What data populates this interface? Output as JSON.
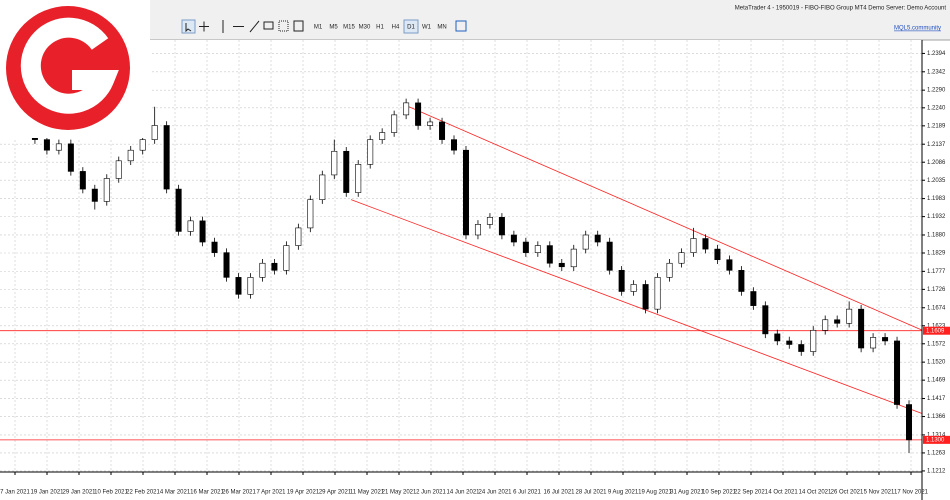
{
  "window_title": "MetaTrader 4 - 1950019 - FIBO-FIBO Group MT4 Demo Server: Demo Account",
  "timeframes": [
    "M1",
    "M5",
    "M15",
    "M30",
    "H1",
    "H4",
    "D1",
    "W1",
    "MN"
  ],
  "active_timeframe": 6,
  "link": "MQL5.community",
  "chart_data": {
    "type": "candlestick",
    "open": [
      1.225,
      1.2222,
      1.217,
      1.215,
      1.212,
      1.2138,
      1.206,
      1.201,
      1.1975,
      1.204,
      1.209,
      1.212,
      1.215,
      1.219,
      1.201,
      1.189,
      1.192,
      1.186,
      1.183,
      1.176,
      1.1712,
      1.176,
      1.18,
      1.178,
      1.185,
      1.19,
      1.198,
      1.205,
      1.2117,
      1.2,
      1.208,
      1.215,
      1.217,
      1.222,
      1.2254,
      1.219,
      1.22,
      1.215,
      1.212,
      1.188,
      1.191,
      1.193,
      1.188,
      1.186,
      1.183,
      1.185,
      1.18,
      1.179,
      1.184,
      1.188,
      1.186,
      1.178,
      1.172,
      1.174,
      1.167,
      1.176,
      1.18,
      1.183,
      1.187,
      1.184,
      1.181,
      1.178,
      1.172,
      1.168,
      1.16,
      1.158,
      1.157,
      1.155,
      1.161,
      1.164,
      1.163,
      1.167,
      1.156,
      1.159,
      1.158,
      1.14
    ],
    "high": [
      1.2262,
      1.2234,
      1.2182,
      1.2162,
      1.215,
      1.215,
      1.2072,
      1.2022,
      1.2052,
      1.2102,
      1.2132,
      1.2162,
      1.2243,
      1.2202,
      1.2022,
      1.1932,
      1.1932,
      1.1872,
      1.1842,
      1.1772,
      1.1772,
      1.1812,
      1.1812,
      1.1862,
      1.1912,
      1.1992,
      1.2062,
      1.215,
      1.2129,
      1.2092,
      1.2162,
      1.2182,
      1.2232,
      1.2266,
      1.2266,
      1.2212,
      1.2212,
      1.2162,
      1.2132,
      1.1922,
      1.1942,
      1.1942,
      1.1892,
      1.1872,
      1.1862,
      1.1862,
      1.1812,
      1.1852,
      1.1892,
      1.1892,
      1.1872,
      1.1792,
      1.1752,
      1.1752,
      1.1772,
      1.1812,
      1.1842,
      1.19,
      1.1882,
      1.1852,
      1.1822,
      1.1792,
      1.1732,
      1.1692,
      1.1612,
      1.1592,
      1.1582,
      1.1622,
      1.1652,
      1.1652,
      1.1692,
      1.1682,
      1.1602,
      1.1602,
      1.1592,
      1.1412
    ],
    "low": [
      1.221,
      1.2158,
      1.2138,
      1.2108,
      1.2108,
      1.2048,
      1.1998,
      1.1952,
      1.1963,
      1.2028,
      1.2078,
      1.2108,
      1.2138,
      1.1998,
      1.1878,
      1.1878,
      1.1848,
      1.1818,
      1.1748,
      1.17,
      1.17,
      1.1748,
      1.1768,
      1.1768,
      1.1838,
      1.1888,
      1.1968,
      1.2038,
      1.1988,
      1.1988,
      1.2068,
      1.2138,
      1.2158,
      1.2208,
      1.2178,
      1.2178,
      1.2138,
      1.2108,
      1.1868,
      1.1868,
      1.1898,
      1.1868,
      1.1848,
      1.1818,
      1.1818,
      1.1788,
      1.1778,
      1.1778,
      1.1828,
      1.1848,
      1.1768,
      1.1708,
      1.1708,
      1.1658,
      1.1658,
      1.1748,
      1.1788,
      1.1818,
      1.1828,
      1.1798,
      1.1768,
      1.1708,
      1.1668,
      1.1588,
      1.1568,
      1.1558,
      1.1538,
      1.1538,
      1.1598,
      1.1618,
      1.1618,
      1.1548,
      1.1548,
      1.1568,
      1.1388,
      1.1263
    ],
    "close": [
      1.2222,
      1.217,
      1.215,
      1.212,
      1.2138,
      1.206,
      1.201,
      1.1975,
      1.204,
      1.209,
      1.212,
      1.215,
      1.219,
      1.201,
      1.189,
      1.192,
      1.186,
      1.183,
      1.176,
      1.1712,
      1.176,
      1.18,
      1.178,
      1.185,
      1.19,
      1.198,
      1.205,
      1.2117,
      1.2,
      1.208,
      1.215,
      1.217,
      1.222,
      1.2254,
      1.219,
      1.22,
      1.215,
      1.212,
      1.188,
      1.191,
      1.193,
      1.188,
      1.186,
      1.183,
      1.185,
      1.18,
      1.179,
      1.184,
      1.188,
      1.186,
      1.178,
      1.172,
      1.174,
      1.167,
      1.176,
      1.18,
      1.183,
      1.187,
      1.184,
      1.181,
      1.178,
      1.172,
      1.168,
      1.16,
      1.158,
      1.157,
      1.155,
      1.161,
      1.164,
      1.163,
      1.167,
      1.156,
      1.159,
      1.158,
      1.14,
      1.13
    ],
    "xlabels": [
      "7 Jan 2021",
      "19 Jan 2021",
      "29 Jan 2021",
      "10 Feb 2021",
      "22 Feb 2021",
      "4 Mar 2021",
      "16 Mar 2021",
      "26 Mar 2021",
      "7 Apr 2021",
      "19 Apr 2021",
      "29 Apr 2021",
      "11 May 2021",
      "21 May 2021",
      "2 Jun 2021",
      "14 Jun 2021",
      "24 Jun 2021",
      "6 Jul 2021",
      "16 Jul 2021",
      "28 Jul 2021",
      "9 Aug 2021",
      "19 Aug 2021",
      "31 Aug 2021",
      "10 Sep 2021",
      "22 Sep 2021",
      "4 Oct 2021",
      "14 Oct 2021",
      "26 Oct 2021",
      "5 Nov 2021",
      "17 Nov 2021"
    ],
    "ylim": [
      1.1209,
      1.2432
    ],
    "yticks": [
      {
        "value": 1.2394,
        "label": "1.2394"
      },
      {
        "value": 1.2342,
        "label": "1.2342"
      },
      {
        "value": 1.229,
        "label": "1.2290"
      },
      {
        "value": 1.224,
        "label": "1.2240"
      },
      {
        "value": 1.2189,
        "label": "1.2189"
      },
      {
        "value": 1.2137,
        "label": "1.2137"
      },
      {
        "value": 1.2086,
        "label": "1.2086"
      },
      {
        "value": 1.2035,
        "label": "1.2035"
      },
      {
        "value": 1.1983,
        "label": "1.1983"
      },
      {
        "value": 1.1932,
        "label": "1.1932"
      },
      {
        "value": 1.188,
        "label": "1.1880"
      },
      {
        "value": 1.1829,
        "label": "1.1829"
      },
      {
        "value": 1.1777,
        "label": "1.1777"
      },
      {
        "value": 1.1726,
        "label": "1.1726"
      },
      {
        "value": 1.1674,
        "label": "1.1674"
      },
      {
        "value": 1.1623,
        "label": "1.1623"
      },
      {
        "value": 1.1572,
        "label": "1.1572"
      },
      {
        "value": 1.152,
        "label": "1.1520"
      },
      {
        "value": 1.1469,
        "label": "1.1469"
      },
      {
        "value": 1.1417,
        "label": "1.1417"
      },
      {
        "value": 1.1366,
        "label": "1.1366"
      },
      {
        "value": 1.1314,
        "label": "1.1314"
      },
      {
        "value": 1.1263,
        "label": "1.1263"
      },
      {
        "value": 1.1212,
        "label": "1.1212"
      }
    ],
    "hlines": [
      {
        "value": 1.1609,
        "label": "1.1609"
      },
      {
        "value": 1.13,
        "label": "1.1300"
      }
    ],
    "trendlines": [
      {
        "x1": 32.9,
        "y1": 1.2248,
        "x2": 76.6,
        "y2": 1.1603
      },
      {
        "x1": 28.4,
        "y1": 1.198,
        "x2": 76.6,
        "y2": 1.1368
      }
    ],
    "line_color": "#ff2020",
    "grid": true
  }
}
